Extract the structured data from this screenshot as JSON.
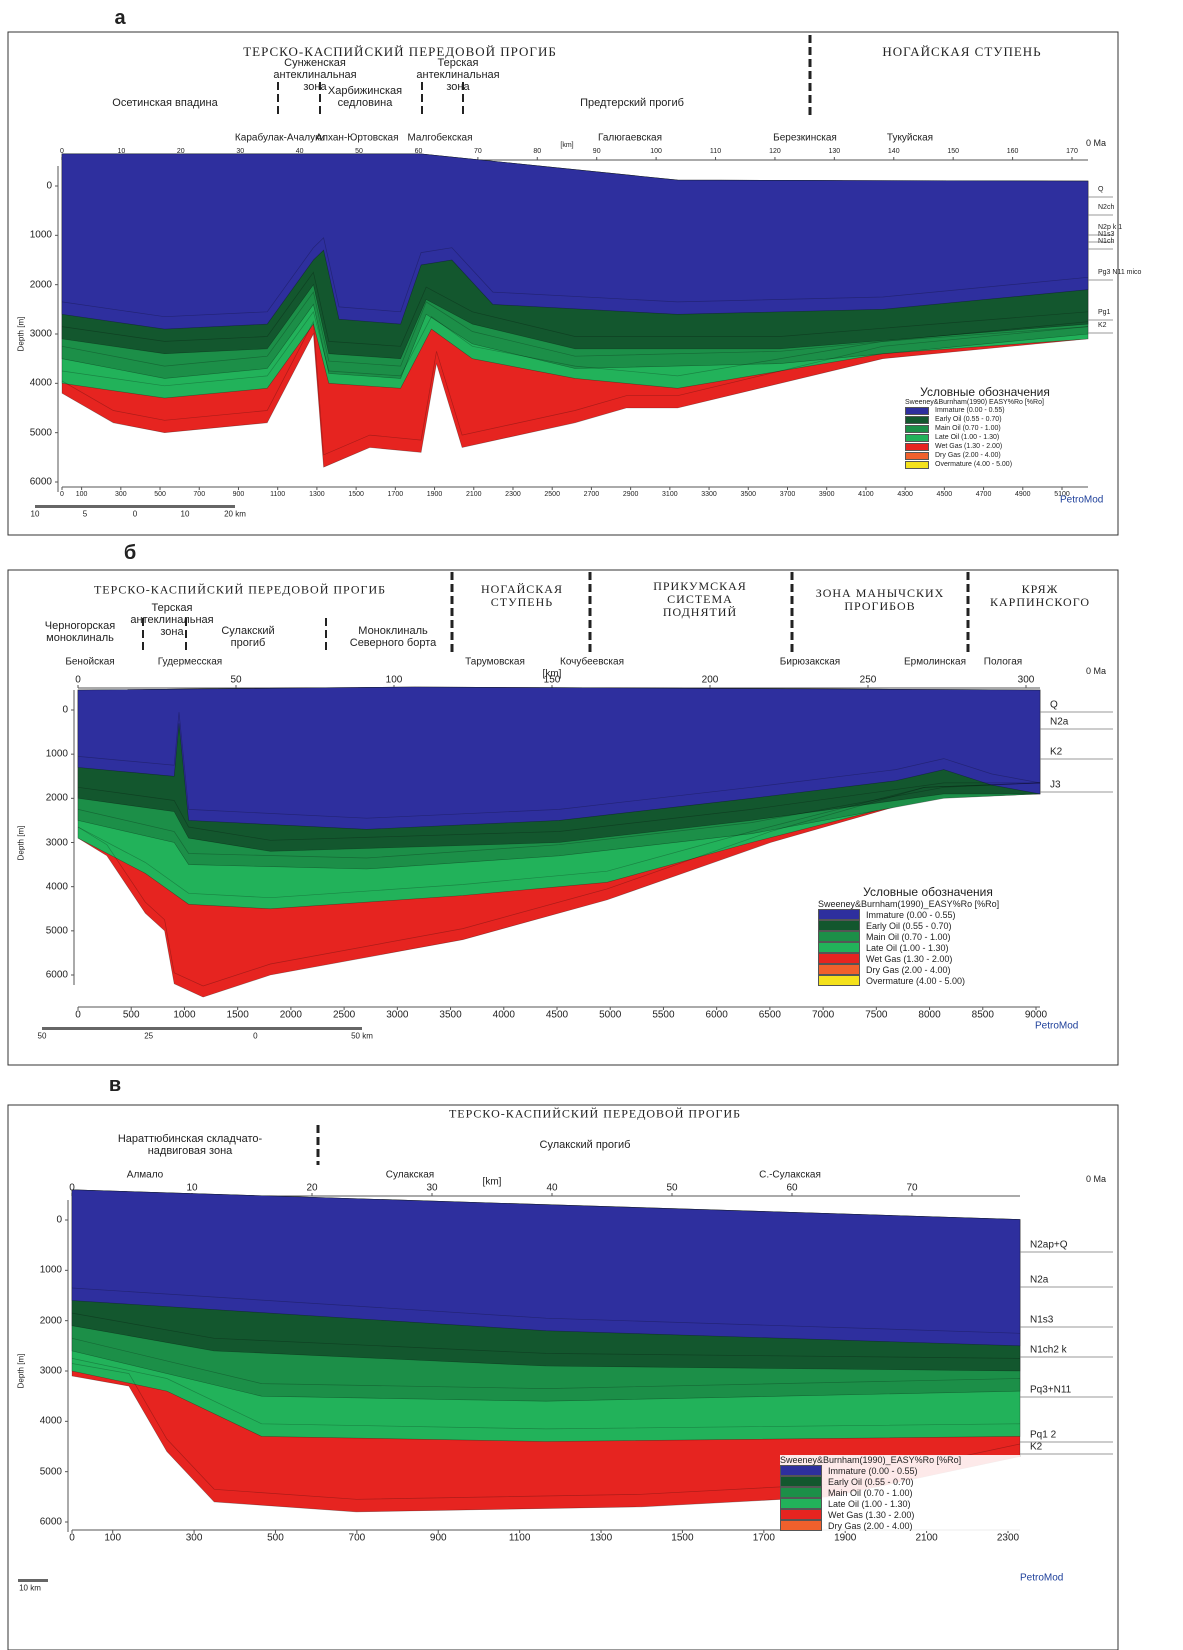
{
  "panels": [
    {
      "label": "а",
      "regions": [
        "ТЕРСКО-КАСПИЙСКИЙ ПЕРЕДОВОЙ ПРОГИБ",
        "НОГАЙСКАЯ СТУПЕНЬ"
      ],
      "zones": [
        "Осетинская впадина",
        "Сунженская антеклинальная зона",
        "Харбижинская седловина",
        "Терская антеклинальная зона",
        "Предтерский прогиб"
      ],
      "wells": [
        "Карабулак-Ачалуки",
        "Алхан-Юртовская",
        "Малгобекская",
        "Галюгаевская",
        "Березкинская",
        "Тукуйская"
      ],
      "km_label": "[km]",
      "km_ticks": [
        0,
        10,
        20,
        30,
        40,
        50,
        60,
        70,
        80,
        90,
        100,
        110,
        120,
        130,
        140,
        150,
        160,
        170
      ],
      "age": "0 Ma",
      "depth_label": "Depth [m]",
      "depth_ticks": [
        0,
        1000,
        2000,
        3000,
        4000,
        5000,
        6000
      ],
      "x_ticks": [
        0,
        100,
        300,
        500,
        700,
        900,
        1100,
        1300,
        1500,
        1700,
        1900,
        2100,
        2300,
        2500,
        2700,
        2900,
        3100,
        3300,
        3500,
        3700,
        3900,
        4100,
        4300,
        4500,
        4700,
        4900,
        5100
      ],
      "layers": [
        "Q",
        "N2ch",
        "N2p k 1",
        "N1s3",
        "N1ch",
        "Pg3 N11 mico",
        "Pg1",
        "K2"
      ],
      "legend_title": "Условные обозначения",
      "legend_subtitle": "Sweeney&Burnham(1990) EASY%Ro [%Ro]",
      "legend": [
        {
          "name": "Immature (0.00 - 0.55)",
          "color": "#2e2f9e"
        },
        {
          "name": "Early Oil (0.55 - 0.70)",
          "color": "#13572e"
        },
        {
          "name": "Main Oil (0.70 - 1.00)",
          "color": "#1c8f48"
        },
        {
          "name": "Late Oil (1.00 - 1.30)",
          "color": "#22b25a"
        },
        {
          "name": "Wet Gas (1.30 - 2.00)",
          "color": "#e62420"
        },
        {
          "name": "Dry Gas (2.00 - 4.00)",
          "color": "#f0602c"
        },
        {
          "name": "Overmature (4.00 - 5.00)",
          "color": "#f4e11c"
        }
      ],
      "scale": [
        "10",
        "5",
        "0",
        "10",
        "20 km"
      ],
      "brand": "PetroMod"
    },
    {
      "label": "б",
      "regions": [
        "ТЕРСКО-КАСПИЙСКИЙ ПЕРЕДОВОЙ ПРОГИБ",
        "НОГАЙСКАЯ СТУПЕНЬ",
        "ПРИКУМСКАЯ СИСТЕМА ПОДНЯТИЙ",
        "ЗОНА МАНЫЧСКИХ ПРОГИБОВ",
        "КРЯЖ КАРПИНСКОГО"
      ],
      "zones": [
        "Черногорская моноклиналь",
        "Терская антеклинальная зона",
        "Сулакский прогиб",
        "Моноклиналь Северного борта"
      ],
      "wells": [
        "Бенойская",
        "Гудермесская",
        "Тарумовская",
        "Кочубеевская",
        "Бирюзакская",
        "Ермолинская",
        "Пологая"
      ],
      "km_label": "[km]",
      "km_ticks": [
        0,
        50,
        100,
        150,
        200,
        250,
        300
      ],
      "age": "0 Ma",
      "depth_label": "Depth [m]",
      "depth_ticks": [
        0,
        1000,
        2000,
        3000,
        4000,
        5000,
        6000
      ],
      "x_ticks": [
        0,
        500,
        1000,
        1500,
        2000,
        2500,
        3000,
        3500,
        4000,
        4500,
        5000,
        5500,
        6000,
        6500,
        7000,
        7500,
        8000,
        8500,
        9000
      ],
      "layers": [
        "Q",
        "N2a",
        "K2",
        "J3"
      ],
      "legend_title": "Условные обозначения",
      "legend_subtitle": "Sweeney&Burnham(1990)_EASY%Ro [%Ro]",
      "legend": [
        {
          "name": "Immature (0.00 - 0.55)",
          "color": "#2e2f9e"
        },
        {
          "name": "Early Oil (0.55 - 0.70)",
          "color": "#13572e"
        },
        {
          "name": "Main Oil (0.70 - 1.00)",
          "color": "#1c8f48"
        },
        {
          "name": "Late Oil (1.00 - 1.30)",
          "color": "#22b25a"
        },
        {
          "name": "Wet Gas (1.30 - 2.00)",
          "color": "#e62420"
        },
        {
          "name": "Dry Gas (2.00 - 4.00)",
          "color": "#f0602c"
        },
        {
          "name": "Overmature (4.00 - 5.00)",
          "color": "#f4e11c"
        }
      ],
      "scale": [
        "50",
        "25",
        "0",
        "50 km"
      ],
      "brand": "PetroMod"
    },
    {
      "label": "в",
      "regions": [
        "ТЕРСКО-КАСПИЙСКИЙ ПЕРЕДОВОЙ ПРОГИБ"
      ],
      "zones": [
        "Нараттюбинская складчато-надвиговая зона",
        "Сулакский прогиб"
      ],
      "wells": [
        "Алмало",
        "Сулакская",
        "С.-Сулакская"
      ],
      "km_label": "[km]",
      "km_ticks": [
        0,
        10,
        20,
        30,
        40,
        50,
        60,
        70
      ],
      "age": "0 Ma",
      "depth_label": "Depth [m]",
      "depth_ticks": [
        0,
        1000,
        2000,
        3000,
        4000,
        5000,
        6000
      ],
      "x_ticks": [
        0,
        100,
        300,
        500,
        700,
        900,
        1100,
        1300,
        1500,
        1700,
        1900,
        2100,
        2300
      ],
      "layers": [
        "N2ap+Q",
        "N2a",
        "N1s3",
        "N1ch2 k",
        "Pq3+N11",
        "Pq1 2",
        "K2"
      ],
      "legend_title": "Sweeney&Burnham(1990)_EASY%Ro [%Ro]",
      "legend": [
        {
          "name": "Immature (0.00 - 0.55)",
          "color": "#2e2f9e"
        },
        {
          "name": "Early Oil (0.55 - 0.70)",
          "color": "#13572e"
        },
        {
          "name": "Main Oil (0.70 - 1.00)",
          "color": "#1c8f48"
        },
        {
          "name": "Late Oil (1.00 - 1.30)",
          "color": "#22b25a"
        },
        {
          "name": "Wet Gas (1.30 - 2.00)",
          "color": "#e62420"
        },
        {
          "name": "Dry Gas (2.00 - 4.00)",
          "color": "#f0602c"
        }
      ],
      "scale": [
        "10 km"
      ],
      "brand": "PetroMod"
    }
  ]
}
